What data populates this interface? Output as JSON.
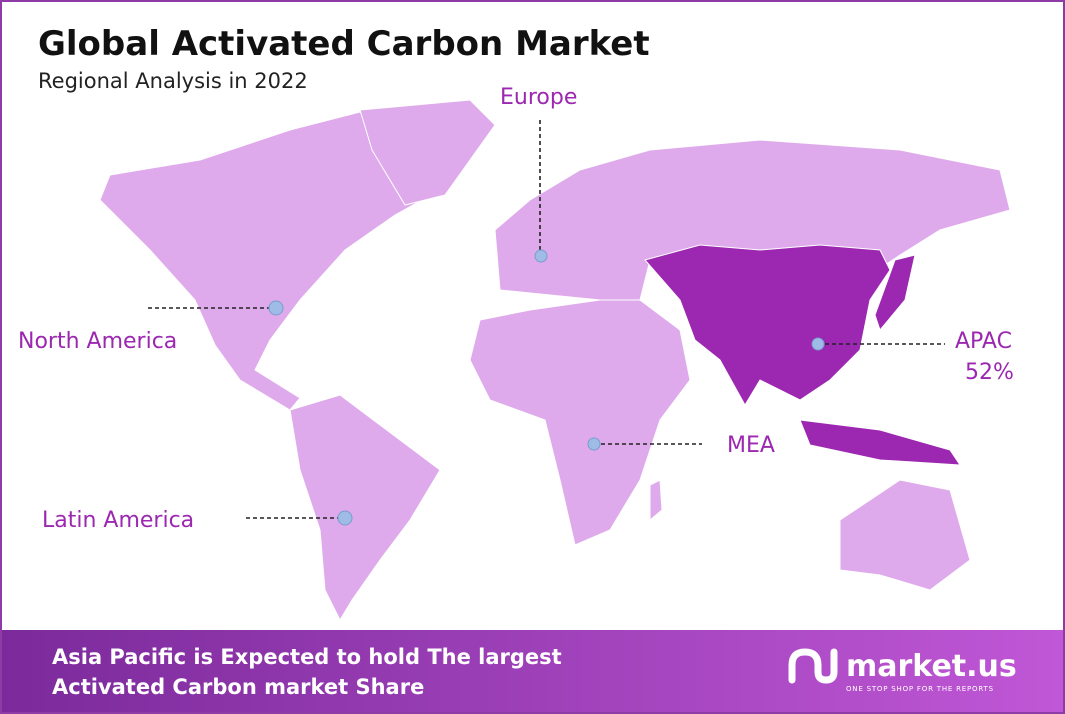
{
  "header": {
    "title": "Global Activated Carbon Market",
    "subtitle": "Regional Analysis in 2022"
  },
  "regions": [
    {
      "label": "Europe"
    },
    {
      "label": "North America"
    },
    {
      "label": "APAC",
      "share": "52%"
    },
    {
      "label": "MEA"
    },
    {
      "label": "Latin America"
    }
  ],
  "footer": {
    "lines": [
      "Asia Pacific is Expected to hold The largest",
      "Activated Carbon market Share"
    ],
    "brand": "market.us",
    "tagline": "ONE STOP SHOP FOR THE REPORTS"
  }
}
